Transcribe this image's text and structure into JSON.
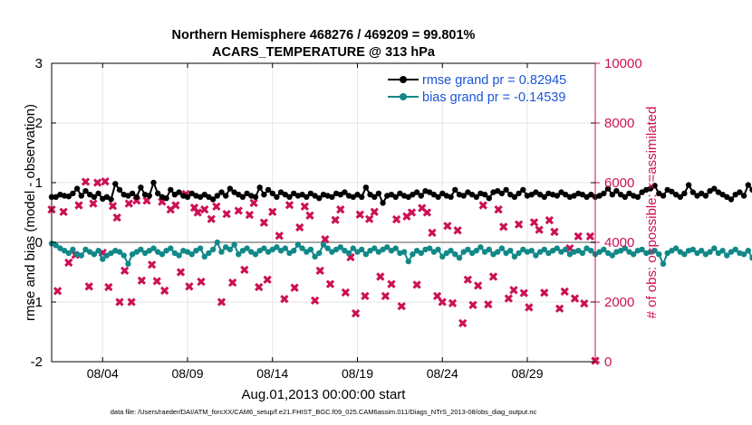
{
  "chart_data": {
    "type": "line",
    "title": [
      "Northern Hemisphere 468276 / 469209 = 99.801%",
      "ACARS_TEMPERATURE @ 313 hPa"
    ],
    "ylabel_left": "rmse and bias (model - observation)",
    "ylabel_right": "# of obs: o=possible; ×=assimilated",
    "xlabel": "Aug.01,2013 00:00:00 start",
    "footer": "data file: /Users/raeder/DAI/ATM_forcXX/CAM6_setup/f.e21.FHIST_BGC.f09_025.CAM6assim.011/Diags_NTrS_2013-08/obs_diag_output.nc",
    "x_range": [
      1,
      33
    ],
    "x_ticks": [
      {
        "value": 4,
        "label": "08/04"
      },
      {
        "value": 9,
        "label": "08/09"
      },
      {
        "value": 14,
        "label": "08/14"
      },
      {
        "value": 19,
        "label": "08/19"
      },
      {
        "value": 24,
        "label": "08/24"
      },
      {
        "value": 29,
        "label": "08/29"
      }
    ],
    "ylim_left": [
      -2,
      3
    ],
    "yticks_left": [
      "-2",
      "-1",
      "0",
      "1",
      "2",
      "3"
    ],
    "ylim_right": [
      0,
      10000
    ],
    "yticks_right": [
      "0",
      "2000",
      "4000",
      "6000",
      "8000",
      "10000"
    ],
    "grid": true,
    "legend": {
      "position": "top-right",
      "entries": [
        "rmse grand pr = 0.82945",
        "bias grand pr = -0.14539"
      ]
    },
    "colors": {
      "rmse": "#000000",
      "bias": "#118888",
      "obs": "#cc1155",
      "legend_text": "#1a55d6",
      "zero_line": "#aaaaaa"
    },
    "x_start": 1.0,
    "x_step": 0.25,
    "series": [
      {
        "name": "rmse",
        "axis": "left",
        "values": [
          0.76,
          0.76,
          0.8,
          0.78,
          0.77,
          0.82,
          0.9,
          0.78,
          0.86,
          0.8,
          0.76,
          0.82,
          0.73,
          0.76,
          0.72,
          0.98,
          0.88,
          0.8,
          0.78,
          0.82,
          0.76,
          0.92,
          0.8,
          0.78,
          1.0,
          0.82,
          0.76,
          0.74,
          0.88,
          0.8,
          0.84,
          0.78,
          0.76,
          0.82,
          0.78,
          0.76,
          0.8,
          0.76,
          0.72,
          0.78,
          0.84,
          0.78,
          0.9,
          0.84,
          0.8,
          0.76,
          0.82,
          0.78,
          0.76,
          0.92,
          0.8,
          0.88,
          0.82,
          0.76,
          0.84,
          0.8,
          0.76,
          0.82,
          0.78,
          0.8,
          0.76,
          0.82,
          0.78,
          0.74,
          0.8,
          0.78,
          0.76,
          0.82,
          0.8,
          0.84,
          0.78,
          0.76,
          0.8,
          0.76,
          0.92,
          0.8,
          0.76,
          0.82,
          0.66,
          0.78,
          0.8,
          0.76,
          0.82,
          0.78,
          0.76,
          0.8,
          0.84,
          0.78,
          0.86,
          0.84,
          0.8,
          0.76,
          0.82,
          0.78,
          0.76,
          0.88,
          0.8,
          0.78,
          0.84,
          0.8,
          0.76,
          0.82,
          0.8,
          0.74,
          0.84,
          0.86,
          0.82,
          0.88,
          0.8,
          0.76,
          0.82,
          0.88,
          0.78,
          0.8,
          0.84,
          0.8,
          0.76,
          0.82,
          0.8,
          0.78,
          0.84,
          0.8,
          0.76,
          0.78,
          0.82,
          0.8,
          0.76,
          0.8,
          0.76,
          0.78,
          0.82,
          0.9,
          0.8,
          0.86,
          0.8,
          0.76,
          0.82,
          0.78,
          0.76,
          0.84,
          0.88,
          0.9,
          0.95,
          0.82,
          0.78,
          0.88,
          0.85,
          0.8,
          0.76,
          0.82,
          0.96,
          0.84,
          0.78,
          0.82,
          0.78,
          0.86,
          0.9,
          0.84,
          0.8,
          0.76,
          0.72,
          0.8,
          0.84,
          0.78,
          0.96,
          0.88,
          0.84,
          0.8,
          0.76,
          0.82,
          0.78,
          0.9,
          0.8,
          0.98,
          0.84,
          0.8,
          0.86,
          0.9,
          0.84,
          0.78,
          0.86,
          1.04,
          0.82,
          0.76
        ]
      },
      {
        "name": "bias",
        "axis": "left",
        "values": [
          -0.02,
          -0.05,
          -0.1,
          -0.14,
          -0.18,
          -0.12,
          -0.2,
          -0.22,
          -0.12,
          -0.16,
          -0.2,
          -0.14,
          -0.28,
          -0.22,
          -0.18,
          -0.14,
          -0.16,
          -0.22,
          -0.36,
          -0.2,
          -0.16,
          -0.12,
          -0.18,
          -0.14,
          -0.1,
          -0.16,
          -0.2,
          -0.14,
          -0.1,
          -0.18,
          -0.22,
          -0.14,
          -0.16,
          -0.2,
          -0.14,
          -0.1,
          -0.24,
          -0.18,
          -0.12,
          0.0,
          -0.16,
          -0.08,
          -0.12,
          -0.04,
          -0.2,
          -0.14,
          -0.1,
          -0.16,
          -0.2,
          -0.14,
          -0.1,
          -0.16,
          -0.12,
          -0.08,
          -0.14,
          -0.1,
          -0.18,
          -0.14,
          -0.04,
          -0.1,
          -0.16,
          -0.12,
          -0.24,
          -0.18,
          -0.04,
          -0.1,
          -0.16,
          -0.12,
          -0.08,
          -0.14,
          -0.18,
          -0.1,
          -0.16,
          -0.12,
          -0.2,
          -0.14,
          -0.1,
          -0.16,
          -0.12,
          -0.08,
          -0.14,
          -0.1,
          -0.18,
          -0.16,
          -0.32,
          -0.2,
          -0.14,
          -0.18,
          -0.12,
          -0.1,
          -0.16,
          -0.12,
          -0.24,
          -0.18,
          -0.14,
          -0.2,
          -0.26,
          -0.16,
          -0.12,
          -0.18,
          -0.14,
          -0.08,
          -0.16,
          -0.12,
          -0.2,
          -0.16,
          -0.1,
          -0.18,
          -0.14,
          -0.24,
          -0.18,
          -0.12,
          -0.16,
          -0.14,
          -0.22,
          -0.16,
          -0.12,
          -0.18,
          -0.14,
          -0.1,
          -0.16,
          -0.12,
          -0.2,
          -0.16,
          -0.14,
          -0.18,
          -0.1,
          -0.14,
          -0.2,
          -0.16,
          -0.12,
          -0.18,
          -0.22,
          -0.16,
          -0.14,
          -0.1,
          -0.16,
          -0.2,
          -0.14,
          -0.12,
          -0.18,
          -0.16,
          -0.14,
          -0.2,
          -0.36,
          -0.18,
          -0.14,
          -0.1,
          -0.16,
          -0.2,
          -0.14,
          -0.12,
          -0.18,
          -0.14,
          -0.2,
          -0.16,
          -0.1,
          -0.18,
          -0.14,
          -0.22,
          -0.16,
          -0.12,
          -0.18,
          -0.2,
          -0.14,
          -0.26,
          -0.16,
          -0.48,
          -0.2,
          -0.14,
          -0.1,
          -0.16,
          -0.22,
          -0.3,
          -0.18,
          -0.14,
          -0.42,
          -0.16,
          -0.1,
          -0.2,
          -0.14,
          -0.12,
          -0.3,
          -0.38,
          -0.22,
          -0.16
        ]
      },
      {
        "name": "possible_and_assimilated",
        "axis": "right",
        "marker": "x",
        "x": [
          1.0,
          1.35,
          1.7,
          2.0,
          2.4,
          2.6,
          3.0,
          3.2,
          3.45,
          3.7,
          4.0,
          4.15,
          4.35,
          4.6,
          4.85,
          5.0,
          5.3,
          5.55,
          5.7,
          6.0,
          6.3,
          6.6,
          6.9,
          7.2,
          7.5,
          7.65,
          8.0,
          8.3,
          8.6,
          8.9,
          9.1,
          9.4,
          9.6,
          9.8,
          10.0,
          10.4,
          10.7,
          11.0,
          11.3,
          11.65,
          12.0,
          12.35,
          12.65,
          12.9,
          13.2,
          13.5,
          13.7,
          14.0,
          14.4,
          14.7,
          15.0,
          15.3,
          15.6,
          15.9,
          16.2,
          16.5,
          16.8,
          17.1,
          17.4,
          17.7,
          18.0,
          18.3,
          18.6,
          18.9,
          19.15,
          19.45,
          19.7,
          20.0,
          20.35,
          20.65,
          21.0,
          21.3,
          21.6,
          21.9,
          22.2,
          22.5,
          22.8,
          23.1,
          23.4,
          23.7,
          24.0,
          24.3,
          24.6,
          24.9,
          25.2,
          25.5,
          25.8,
          26.1,
          26.4,
          26.7,
          27.0,
          27.3,
          27.6,
          27.9,
          28.2,
          28.5,
          28.8,
          29.1,
          29.4,
          29.7,
          30.0,
          30.3,
          30.6,
          30.9,
          31.2,
          31.5,
          31.8,
          32.0,
          32.35,
          32.7,
          33.0
        ],
        "values": [
          5100,
          2370,
          5020,
          3320,
          3580,
          5240,
          6030,
          2520,
          5300,
          6000,
          3650,
          6040,
          2500,
          5220,
          4830,
          2000,
          3050,
          5300,
          2000,
          5400,
          2720,
          5400,
          3250,
          2700,
          5360,
          2380,
          5100,
          5240,
          3000,
          5620,
          2520,
          5160,
          5000,
          2680,
          5100,
          4780,
          5200,
          2000,
          4950,
          2650,
          5060,
          3080,
          4920,
          5320,
          2500,
          4660,
          2750,
          5020,
          4220,
          2100,
          5250,
          2480,
          4500,
          5200,
          4900,
          2050,
          3050,
          4100,
          2600,
          4750,
          5100,
          2320,
          3500,
          1620,
          4930,
          2200,
          4780,
          5020,
          2850,
          2200,
          2600,
          4770,
          1860,
          4870,
          5000,
          2580,
          5150,
          5000,
          4320,
          2200,
          2000,
          4550,
          1960,
          4400,
          1290,
          2750,
          1900,
          2550,
          5240,
          1920,
          2850,
          5100,
          4520,
          2120,
          2400,
          4600,
          2300,
          1820,
          4670,
          4420,
          2310,
          4740,
          4350,
          1780,
          2350,
          3800,
          2120,
          4200,
          1950,
          4200,
          30
        ]
      }
    ]
  }
}
